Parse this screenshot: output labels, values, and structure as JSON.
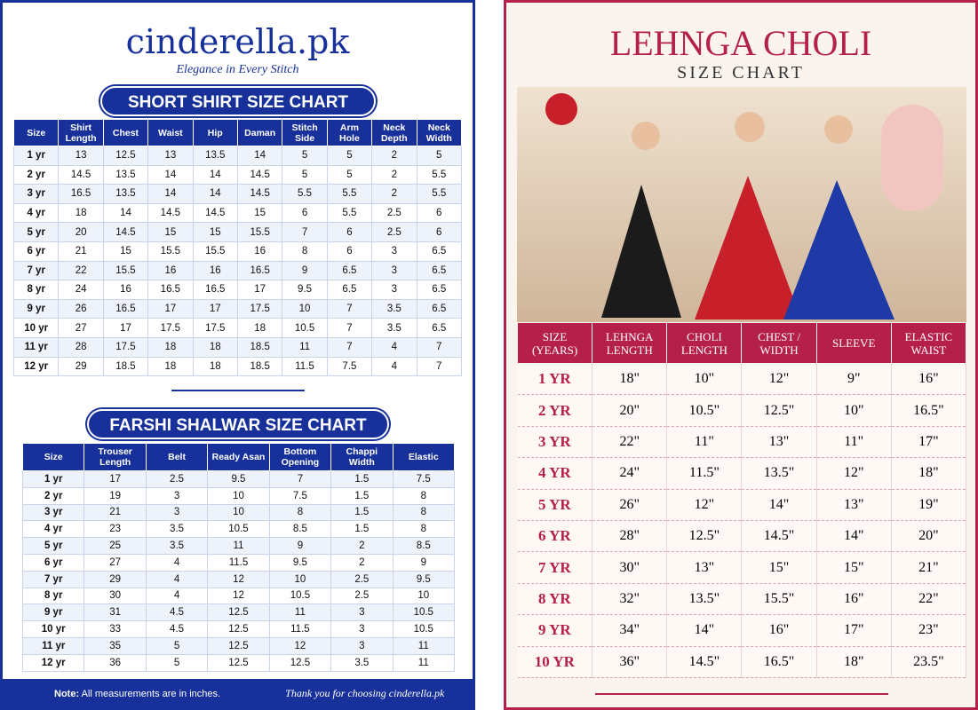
{
  "left": {
    "brand": "cinderella.pk",
    "tagline": "Elegance in Every Stitch",
    "shirt_table": {
      "title": "SHORT SHIRT SIZE CHART",
      "headers": [
        "Size",
        "Shirt Length",
        "Chest",
        "Waist",
        "Hip",
        "Daman",
        "Stitch Side",
        "Arm Hole",
        "Neck Depth",
        "Neck Width"
      ],
      "rows": [
        [
          "1 yr",
          "13",
          "12.5",
          "13",
          "13.5",
          "14",
          "5",
          "5",
          "2",
          "5"
        ],
        [
          "2 yr",
          "14.5",
          "13.5",
          "14",
          "14",
          "14.5",
          "5",
          "5",
          "2",
          "5.5"
        ],
        [
          "3 yr",
          "16.5",
          "13.5",
          "14",
          "14",
          "14.5",
          "5.5",
          "5.5",
          "2",
          "5.5"
        ],
        [
          "4 yr",
          "18",
          "14",
          "14.5",
          "14.5",
          "15",
          "6",
          "5.5",
          "2.5",
          "6"
        ],
        [
          "5 yr",
          "20",
          "14.5",
          "15",
          "15",
          "15.5",
          "7",
          "6",
          "2.5",
          "6"
        ],
        [
          "6 yr",
          "21",
          "15",
          "15.5",
          "15.5",
          "16",
          "8",
          "6",
          "3",
          "6.5"
        ],
        [
          "7 yr",
          "22",
          "15.5",
          "16",
          "16",
          "16.5",
          "9",
          "6.5",
          "3",
          "6.5"
        ],
        [
          "8 yr",
          "24",
          "16",
          "16.5",
          "16.5",
          "17",
          "9.5",
          "6.5",
          "3",
          "6.5"
        ],
        [
          "9 yr",
          "26",
          "16.5",
          "17",
          "17",
          "17.5",
          "10",
          "7",
          "3.5",
          "6.5"
        ],
        [
          "10 yr",
          "27",
          "17",
          "17.5",
          "17.5",
          "18",
          "10.5",
          "7",
          "3.5",
          "6.5"
        ],
        [
          "11 yr",
          "28",
          "17.5",
          "18",
          "18",
          "18.5",
          "11",
          "7",
          "4",
          "7"
        ],
        [
          "12 yr",
          "29",
          "18.5",
          "18",
          "18",
          "18.5",
          "11.5",
          "7.5",
          "4",
          "7"
        ]
      ]
    },
    "shalwar_table": {
      "title": "FARSHI SHALWAR SIZE CHART",
      "headers": [
        "Size",
        "Trouser Length",
        "Belt",
        "Ready Asan",
        "Bottom Opening",
        "Chappi Width",
        "Elastic"
      ],
      "rows": [
        [
          "1 yr",
          "17",
          "2.5",
          "9.5",
          "7",
          "1.5",
          "7.5"
        ],
        [
          "2 yr",
          "19",
          "3",
          "10",
          "7.5",
          "1.5",
          "8"
        ],
        [
          "3 yr",
          "21",
          "3",
          "10",
          "8",
          "1.5",
          "8"
        ],
        [
          "4 yr",
          "23",
          "3.5",
          "10.5",
          "8.5",
          "1.5",
          "8"
        ],
        [
          "5 yr",
          "25",
          "3.5",
          "11",
          "9",
          "2",
          "8.5"
        ],
        [
          "6 yr",
          "27",
          "4",
          "11.5",
          "9.5",
          "2",
          "9"
        ],
        [
          "7 yr",
          "29",
          "4",
          "12",
          "10",
          "2.5",
          "9.5"
        ],
        [
          "8 yr",
          "30",
          "4",
          "12",
          "10.5",
          "2.5",
          "10"
        ],
        [
          "9 yr",
          "31",
          "4.5",
          "12.5",
          "11",
          "3",
          "10.5"
        ],
        [
          "10 yr",
          "33",
          "4.5",
          "12.5",
          "11.5",
          "3",
          "10.5"
        ],
        [
          "11 yr",
          "35",
          "5",
          "12.5",
          "12",
          "3",
          "11"
        ],
        [
          "12 yr",
          "36",
          "5",
          "12.5",
          "12.5",
          "3.5",
          "11"
        ]
      ]
    },
    "footer": {
      "note_label": "Note:",
      "note": "All measurements are in inches.",
      "thanks": "Thank you for choosing cinderella.pk"
    }
  },
  "right": {
    "title": "LEHNGA CHOLI",
    "subtitle": "SIZE CHART",
    "table": {
      "headers": [
        "SIZE (YEARS)",
        "LEHNGA LENGTH",
        "CHOLI LENGTH",
        "CHEST / WIDTH",
        "SLEEVE",
        "ELASTIC WAIST"
      ],
      "rows": [
        [
          "1 YR",
          "18\"",
          "10\"",
          "12\"",
          "9\"",
          "16\""
        ],
        [
          "2 YR",
          "20\"",
          "10.5\"",
          "12.5\"",
          "10\"",
          "16.5\""
        ],
        [
          "3 YR",
          "22\"",
          "11\"",
          "13\"",
          "11\"",
          "17\""
        ],
        [
          "4 YR",
          "24\"",
          "11.5\"",
          "13.5\"",
          "12\"",
          "18\""
        ],
        [
          "5 YR",
          "26\"",
          "12\"",
          "14\"",
          "13\"",
          "19\""
        ],
        [
          "6 YR",
          "28\"",
          "12.5\"",
          "14.5\"",
          "14\"",
          "20\""
        ],
        [
          "7 YR",
          "30\"",
          "13\"",
          "15\"",
          "15\"",
          "21\""
        ],
        [
          "8 YR",
          "32\"",
          "13.5\"",
          "15.5\"",
          "16\"",
          "22\""
        ],
        [
          "9 YR",
          "34\"",
          "14\"",
          "16\"",
          "17\"",
          "23\""
        ],
        [
          "10 YR",
          "36\"",
          "14.5\"",
          "16.5\"",
          "18\"",
          "23.5\""
        ]
      ]
    }
  }
}
